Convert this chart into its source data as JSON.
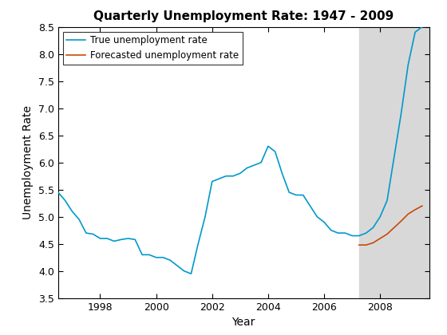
{
  "title": "Quarterly Unemployment Rate: 1947 - 2009",
  "xlabel": "Year",
  "ylabel": "Unemployment Rate",
  "ylim": [
    3.5,
    8.5
  ],
  "xlim": [
    1996.5,
    2009.75
  ],
  "shade_start": 2007.25,
  "shade_end": 2009.75,
  "shade_color": "#d8d8d8",
  "true_color": "#0099cc",
  "forecast_color": "#c8490a",
  "true_x": [
    1996.5,
    1996.75,
    1997.0,
    1997.25,
    1997.5,
    1997.75,
    1998.0,
    1998.25,
    1998.5,
    1998.75,
    1999.0,
    1999.25,
    1999.5,
    1999.75,
    2000.0,
    2000.25,
    2000.5,
    2000.75,
    2001.0,
    2001.25,
    2001.5,
    2001.75,
    2002.0,
    2002.25,
    2002.5,
    2002.75,
    2003.0,
    2003.25,
    2003.5,
    2003.75,
    2004.0,
    2004.25,
    2004.5,
    2004.75,
    2005.0,
    2005.25,
    2005.5,
    2005.75,
    2006.0,
    2006.25,
    2006.5,
    2006.75,
    2007.0,
    2007.25,
    2007.5,
    2007.75,
    2008.0,
    2008.25,
    2008.5,
    2008.75,
    2009.0,
    2009.25,
    2009.5
  ],
  "true_y": [
    5.45,
    5.3,
    5.1,
    4.95,
    4.7,
    4.68,
    4.6,
    4.6,
    4.55,
    4.58,
    4.6,
    4.58,
    4.3,
    4.3,
    4.25,
    4.25,
    4.2,
    4.1,
    4.0,
    3.95,
    4.5,
    5.0,
    5.65,
    5.7,
    5.75,
    5.75,
    5.8,
    5.9,
    5.95,
    6.0,
    6.3,
    6.2,
    5.8,
    5.45,
    5.4,
    5.4,
    5.2,
    5.0,
    4.9,
    4.75,
    4.7,
    4.7,
    4.65,
    4.65,
    4.7,
    4.8,
    5.0,
    5.3,
    6.1,
    6.9,
    7.8,
    8.4,
    8.5
  ],
  "forecast_x": [
    2007.25,
    2007.5,
    2007.75,
    2008.0,
    2008.25,
    2008.5,
    2008.75,
    2009.0,
    2009.25,
    2009.5
  ],
  "forecast_y": [
    4.48,
    4.48,
    4.52,
    4.6,
    4.68,
    4.8,
    4.92,
    5.05,
    5.13,
    5.2
  ],
  "legend_true": "True unemployment rate",
  "legend_forecast": "Forecasted unemployment rate",
  "title_fontsize": 11,
  "axis_label_fontsize": 10,
  "tick_fontsize": 9,
  "xticks": [
    1998,
    2000,
    2002,
    2004,
    2006,
    2008
  ],
  "yticks": [
    3.5,
    4.0,
    4.5,
    5.0,
    5.5,
    6.0,
    6.5,
    7.0,
    7.5,
    8.0,
    8.5
  ]
}
